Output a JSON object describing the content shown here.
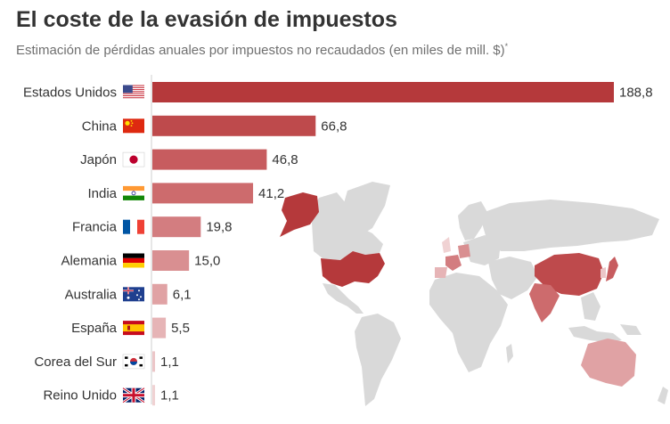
{
  "title": "El coste de la evasión de impuestos",
  "subtitle": "Estimación de pérdidas anuales por impuestos no recaudados (en miles de mill. $)",
  "subtitle_mark": "*",
  "chart_data": {
    "type": "bar",
    "orientation": "horizontal",
    "title": "El coste de la evasión de impuestos",
    "subtitle": "Estimación de pérdidas anuales por impuestos no recaudados (en miles de mill. $)",
    "xlabel": "",
    "ylabel": "",
    "xlim": [
      0,
      188.8
    ],
    "grid": false,
    "categories": [
      "Estados Unidos",
      "China",
      "Japón",
      "India",
      "Francia",
      "Alemania",
      "Australia",
      "España",
      "Corea del Sur",
      "Reino Unido"
    ],
    "values": [
      188.8,
      66.8,
      46.8,
      41.2,
      19.8,
      15.0,
      6.1,
      5.5,
      1.1,
      1.1
    ],
    "value_labels": [
      "188,8",
      "66,8",
      "46,8",
      "41,2",
      "19,8",
      "15,0",
      "6,1",
      "5,5",
      "1,1",
      "1,1"
    ],
    "flags": [
      "us-flag-icon",
      "cn-flag-icon",
      "jp-flag-icon",
      "in-flag-icon",
      "fr-flag-icon",
      "de-flag-icon",
      "au-flag-icon",
      "es-flag-icon",
      "kr-flag-icon",
      "gb-flag-icon"
    ],
    "bar_colors": [
      "#b5393b",
      "#be4a4c",
      "#c75c5f",
      "#cd6b6d",
      "#d37d80",
      "#d98f91",
      "#e0a2a4",
      "#e6b4b6",
      "#ecc6c8",
      "#f0d2d3"
    ]
  },
  "map": {
    "land_color": "#d9d9d9",
    "highlight_colors": {
      "us": "#b5393b",
      "cn": "#be4a4c",
      "jp": "#c75c5f",
      "in": "#cd6b6d",
      "fr": "#d37d80",
      "de": "#d98f91",
      "au": "#e0a2a4",
      "es": "#e6b4b6",
      "kr": "#ecc6c8",
      "gb": "#f0d2d3"
    }
  }
}
